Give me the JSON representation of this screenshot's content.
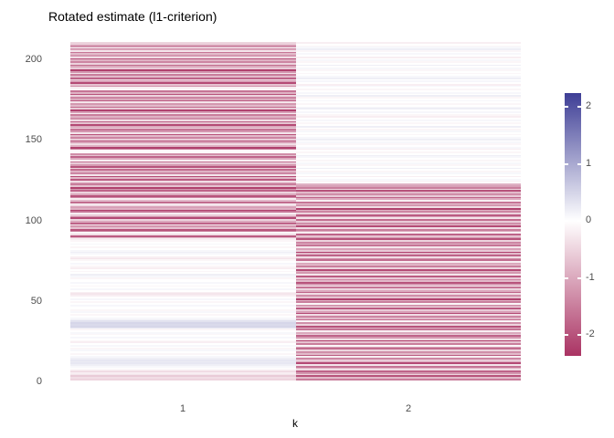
{
  "figure": {
    "background": "#ffffff"
  },
  "chart_data": {
    "type": "heatmap",
    "title": "Rotated estimate (l1-criterion)",
    "xlabel": "k",
    "categories": [
      "1",
      "2"
    ],
    "y_ticks": [
      0,
      50,
      100,
      150,
      200
    ],
    "n_rows": 210,
    "value_limits": [
      -2.37,
      2.37
    ],
    "grid": "off",
    "legend": {
      "position": "right",
      "ticks": [
        "2",
        "1",
        "0",
        "-1",
        "-2"
      ],
      "tick_values": [
        2,
        1,
        0,
        -1,
        -2
      ]
    },
    "colors": {
      "negative": "#AA3363",
      "zero": "#FFFFFF",
      "positive": "#3E3E96"
    },
    "series": [
      {
        "name": "k=1",
        "values": [
          -0.5,
          -0.4,
          -0.6,
          -0.3,
          -0.2,
          -0.4,
          -0.1,
          0,
          0.1,
          0.2,
          0.3,
          0.25,
          0.3,
          0.2,
          0.1,
          0,
          -0.1,
          0,
          0.1,
          -0.1,
          0,
          0.1,
          0,
          -0.2,
          -0.1,
          0,
          0.1,
          0,
          -0.1,
          0.1,
          0,
          -0.1,
          0.3,
          0.5,
          0.45,
          0.5,
          0.35,
          0.2,
          0.1,
          0,
          -0.1,
          0,
          0.1,
          -0.1,
          0,
          0,
          0.1,
          0,
          -0.1,
          0,
          0.1,
          0,
          -0.2,
          -0.3,
          -0.2,
          0,
          0.1,
          0,
          -0.1,
          0,
          0.1,
          0,
          0,
          -0.1,
          0.1,
          0.2,
          0,
          -0.1,
          0,
          -0.2,
          -0.1,
          0,
          0.1,
          0,
          -0.1,
          -0.3,
          -0.2,
          0,
          0.1,
          0.2,
          0.1,
          0,
          -0.1,
          0,
          0.1,
          0,
          -0.1,
          -0.2,
          -0.8,
          -1.9,
          -0.4,
          -0.1,
          -1.5,
          -2,
          -0.7,
          -1.2,
          -0.3,
          -1.8,
          -1,
          -0.5,
          -2.1,
          -1.3,
          -0.6,
          -0.2,
          -1.6,
          -2.2,
          -0.9,
          -1.1,
          -0.4,
          -0.1,
          -1.7,
          -0.8,
          -0.2,
          -1.4,
          -2,
          -1,
          -0.5,
          -1.8,
          -1.2,
          -2.2,
          -0.7,
          -1.5,
          -1.1,
          -0.4,
          -1.9,
          -0.8,
          -2.1,
          -0.3,
          -1.4,
          -0.9,
          -1.7,
          -0.5,
          -2,
          -1.2,
          -0.6,
          -1.6,
          -0.2,
          -1,
          -1.8,
          -0.7,
          -1.3,
          0,
          -0.1,
          -1.5,
          -2.2,
          -0.9,
          -0.4,
          -1.1,
          -1.9,
          -0.6,
          -1.4,
          -0.8,
          -2,
          -0.3,
          -1.2,
          -1.6,
          -0.5,
          -1,
          -2.1,
          -0.7,
          -1.8,
          -0.4,
          -1.3,
          -0.9,
          -1.5,
          -0.2,
          -1.1,
          -2.2,
          -0.6,
          -1.7,
          -0.8,
          -1.2,
          -0.3,
          -1.9,
          -1,
          -1.4,
          -0.5,
          -2,
          -0.9,
          -1.6,
          -0.1,
          -0.2,
          -1.3,
          -0.7,
          -2.1,
          -1.1,
          -0.4,
          -1.8,
          -0.8,
          -1.5,
          -0.3,
          -1.2,
          -2.2,
          -0.6,
          -1,
          -1.7,
          -0.5,
          -1.4,
          -0.9,
          -2,
          -0.4,
          -1.2,
          -0.8,
          -1.6,
          -0.3,
          -1.1,
          -0.6,
          -1.9,
          -0.7,
          -0.5
        ]
      },
      {
        "name": "k=2",
        "values": [
          -1.5,
          -0.8,
          -2,
          -0.5,
          -1.2,
          -1.8,
          -0.4,
          -0.9,
          -1.6,
          -0.3,
          -2.1,
          -1,
          -0.6,
          -1.4,
          -0.2,
          -1.9,
          -0.8,
          -1.3,
          -0.5,
          -1.7,
          -1.1,
          -0.1,
          -1.5,
          -0.7,
          -2.2,
          -0.4,
          -1.2,
          -1.8,
          -0.6,
          -1,
          -0.2,
          -1.6,
          -0.9,
          -2,
          -0.5,
          -1.3,
          -0.1,
          -1.7,
          -0.8,
          -1.4,
          -0.4,
          -2.1,
          -1.1,
          -0.6,
          -1.9,
          -0.3,
          -1.2,
          -0.1,
          -1.5,
          -0.9,
          -2.2,
          -0.7,
          -1.3,
          -0.4,
          -1.8,
          -1,
          -0.5,
          -1.6,
          -0.2,
          -1.1,
          -2,
          -0.8,
          -1.4,
          -0.6,
          -1.9,
          -0.3,
          -1.2,
          -0.9,
          -2.1,
          -0.5,
          -1.5,
          -0.7,
          -1,
          -0.2,
          -1.7,
          -1.3,
          -0.4,
          -1.8,
          -0.8,
          -2.2,
          -0.6,
          -1.1,
          -0.3,
          -1.6,
          -0.9,
          -1.4,
          -0.5,
          -2,
          -1.2,
          -0.7,
          -1.8,
          -0.2,
          -1,
          -1.5,
          -0.4,
          -2.1,
          -0.8,
          -1.3,
          -0.6,
          -1.7,
          -0.3,
          -1.1,
          -1.9,
          -0.5,
          -1.4,
          -0.9,
          -2.2,
          -0.4,
          -1.2,
          -0.7,
          -1.6,
          -0.2,
          -1,
          -1.8,
          -0.6,
          -1.3,
          -0.8,
          -2,
          -0.5,
          -1.5,
          -1.1,
          -0.9,
          0,
          -0.1,
          0.1,
          0,
          -0.2,
          0,
          0.1,
          -0.1,
          0,
          0.2,
          0,
          -0.1,
          0.1,
          0,
          -0.1,
          0,
          0.1,
          0.2,
          0,
          -0.1,
          0,
          -0.2,
          0.1,
          0,
          -0.1,
          0.1,
          0,
          0.2,
          0.1,
          0,
          -0.1,
          0,
          0.1,
          -0.1,
          0,
          0.2,
          0,
          -0.1,
          0,
          0.1,
          0,
          -0.2,
          -0.1,
          0,
          0.1,
          0,
          0.2,
          0.1,
          0,
          -0.1,
          0,
          0.1,
          0,
          -0.1,
          0.2,
          0,
          0.1,
          0,
          -0.1,
          0,
          0.1,
          -0.2,
          0,
          0.1,
          0,
          0.2,
          0.1,
          0,
          -0.1,
          0,
          -0.1,
          0.1,
          0,
          0.2,
          0,
          -0.1,
          0.1,
          0,
          -0.2,
          0,
          0.1,
          0,
          -0.1,
          0.2,
          0.1,
          -0.1,
          0,
          -0.2
        ]
      }
    ]
  }
}
